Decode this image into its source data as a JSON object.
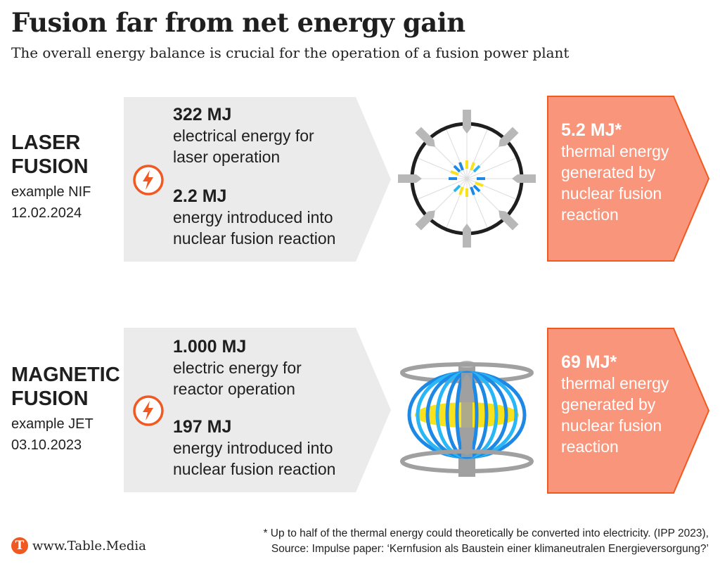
{
  "title": "Fusion far from net energy gain",
  "subtitle": "The overall energy balance is crucial for the operation of a fusion power plant",
  "colors": {
    "input_arrow": "#ebebeb",
    "output_arrow": "#f9957a",
    "output_border": "#f05a22",
    "bolt": "#f05a22",
    "blue": "#1e88e5",
    "light_blue": "#29b6f6",
    "yellow": "#f7e21b",
    "gray": "#a0a0a0"
  },
  "rows": [
    {
      "name_line1": "LASER",
      "name_line2": "FUSION",
      "example": "example NIF",
      "date": "12.02.2024",
      "input1_value": "322 MJ",
      "input1_desc1": "electrical energy for",
      "input1_desc2": "laser operation",
      "input2_value": "2.2 MJ",
      "input2_desc1": "energy introduced into",
      "input2_desc2": "nuclear fusion reaction",
      "output_value": "5.2 MJ*",
      "output_desc1": "thermal energy",
      "output_desc2": "generated by",
      "output_desc3": "nuclear fusion",
      "output_desc4": "reaction",
      "input_icon": "lightning-bolt-icon",
      "illustration": "laser-chamber-illustration"
    },
    {
      "name_line1": "MAGNETIC",
      "name_line2": "FUSION",
      "example": "example JET",
      "date": "03.10.2023",
      "input1_value": "1.000 MJ",
      "input1_desc1": "electric energy for",
      "input1_desc2": "reactor operation",
      "input2_value": "197 MJ",
      "input2_desc1": "energy introduced into",
      "input2_desc2": "nuclear fusion reaction",
      "output_value": "69 MJ*",
      "output_desc1": "thermal energy",
      "output_desc2": "generated by",
      "output_desc3": "nuclear fusion",
      "output_desc4": "reaction",
      "input_icon": "lightning-bolt-icon",
      "illustration": "tokamak-illustration"
    }
  ],
  "footer": {
    "logo_letter": "T",
    "url": "www.Table.Media",
    "note_line1": "* Up to half of the thermal energy could theoretically be converted into electricity. (IPP 2023),",
    "note_line2": "Source: Impulse paper: ‘Kernfusion als Baustein einer klimaneutralen Energieversorgung?’"
  }
}
